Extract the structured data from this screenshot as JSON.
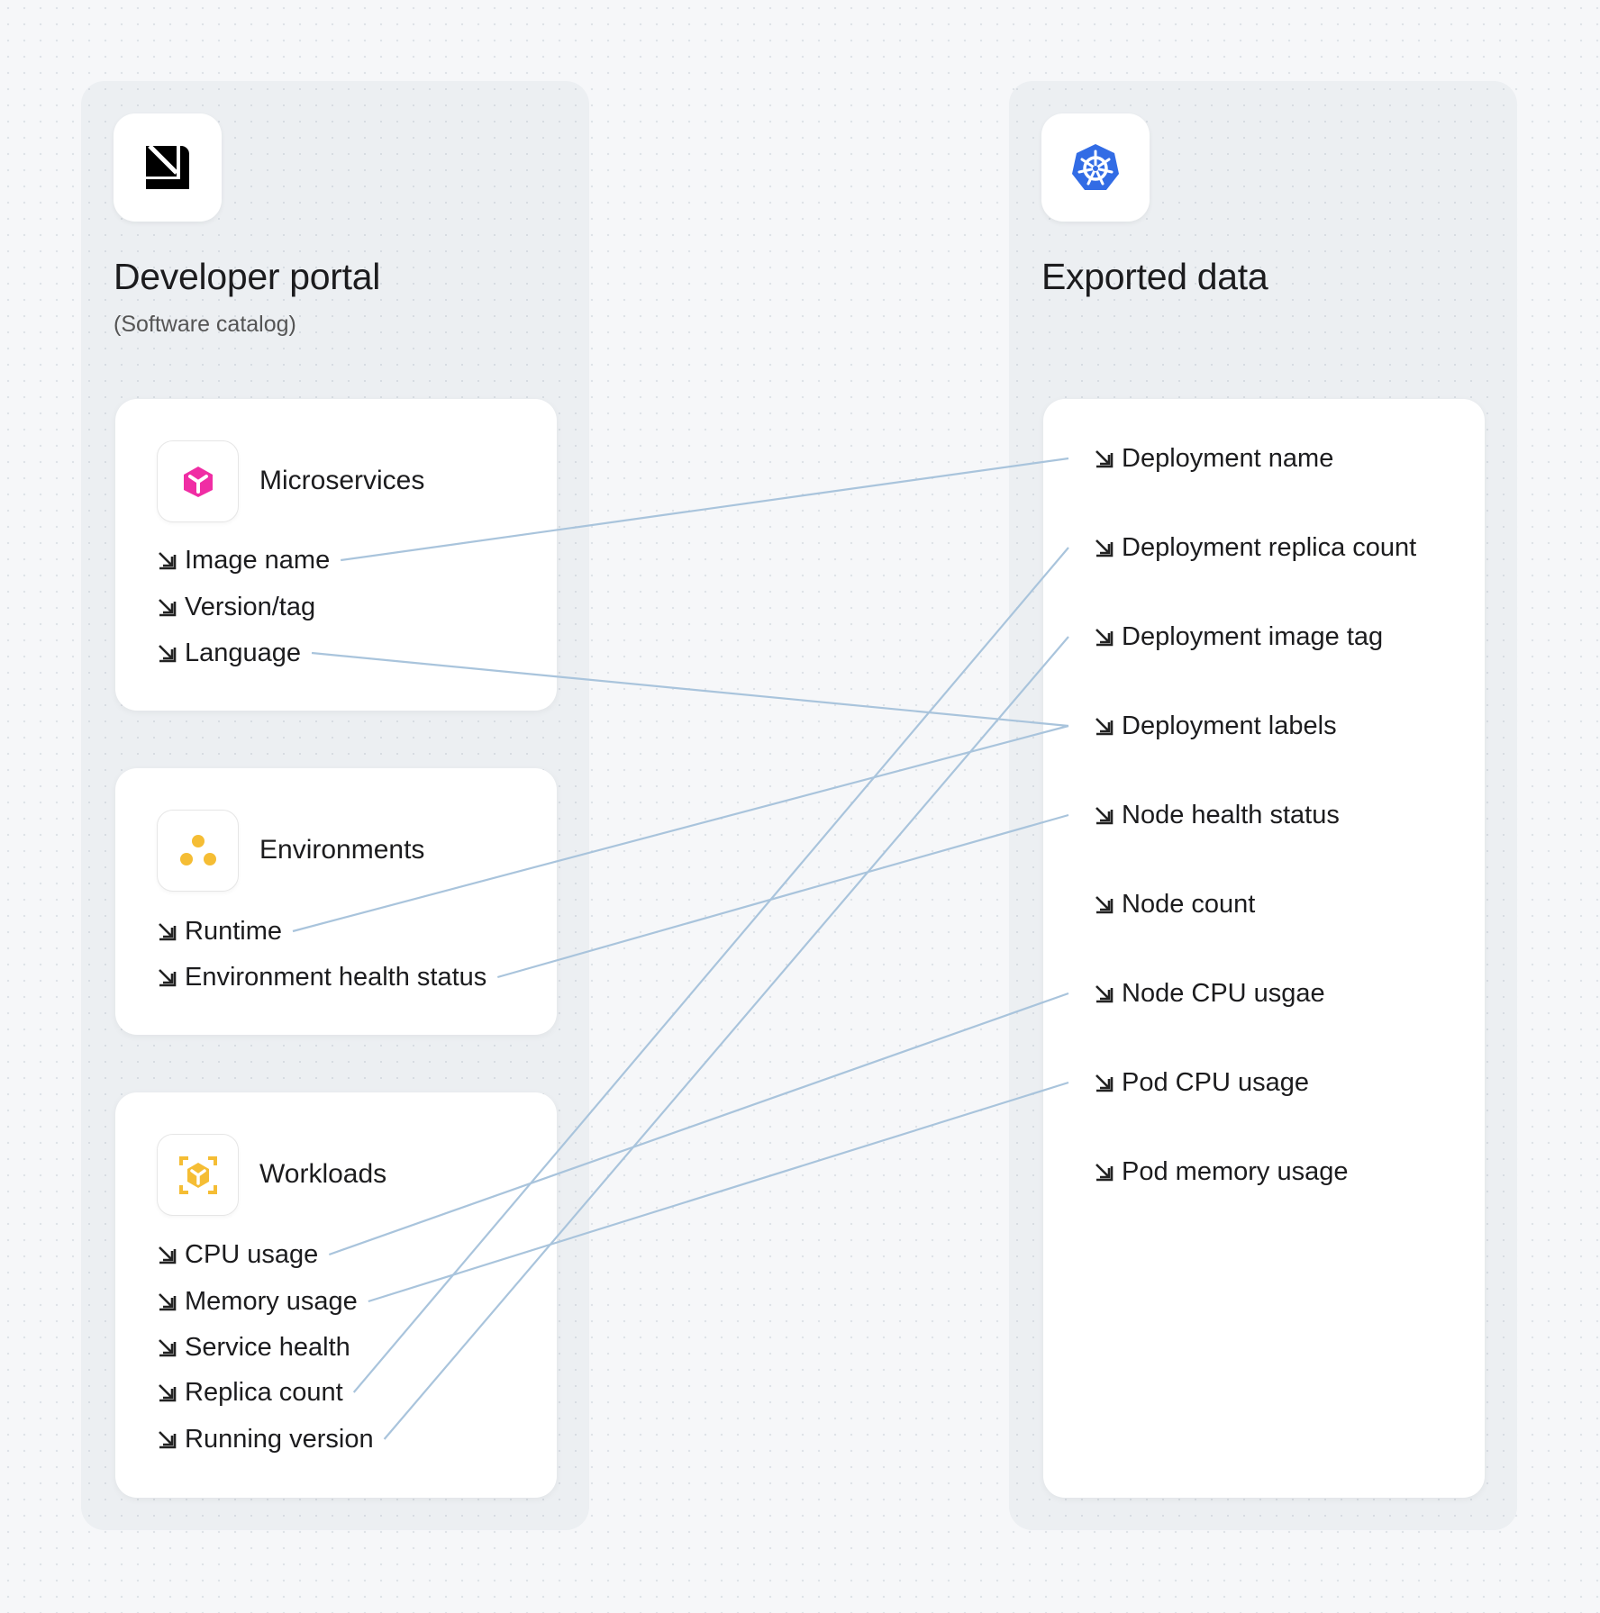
{
  "left": {
    "title": "Developer portal",
    "subtitle": "(Software catalog)",
    "cards": [
      {
        "label": "Microservices",
        "icon": "cube-icon",
        "icon_color": "#f02da4",
        "items": [
          "Image name",
          "Version/tag",
          "Language"
        ]
      },
      {
        "label": "Environments",
        "icon": "three-dots-icon",
        "icon_color": "#f5bd34",
        "items": [
          "Runtime",
          "Environment health status"
        ]
      },
      {
        "label": "Workloads",
        "icon": "cube-focus-icon",
        "icon_color": "#f5bd34",
        "items": [
          "CPU usage",
          "Memory usage",
          "Service health",
          "Replica count",
          "Running version"
        ]
      }
    ]
  },
  "right": {
    "title": "Exported data",
    "icon": "kubernetes-icon",
    "icon_color": "#326ce5",
    "items": [
      "Deployment name",
      "Deployment replica count",
      "Deployment image tag",
      "Deployment labels",
      "Node health status",
      "Node count",
      "Node CPU usgae",
      "Pod CPU usage",
      "Pod memory usage"
    ]
  },
  "connections": [
    {
      "from": "Image name",
      "to": "Deployment name"
    },
    {
      "from": "Language",
      "to": "Deployment labels"
    },
    {
      "from": "Runtime",
      "to": "Deployment labels"
    },
    {
      "from": "Environment health status",
      "to": "Node health status"
    },
    {
      "from": "CPU usage",
      "to": "Node CPU usgae"
    },
    {
      "from": "Memory usage",
      "to": "Pod CPU usage"
    },
    {
      "from": "Replica count",
      "to": "Deployment replica count"
    },
    {
      "from": "Running version",
      "to": "Deployment image tag"
    }
  ],
  "line_color": "#a9c4dc"
}
